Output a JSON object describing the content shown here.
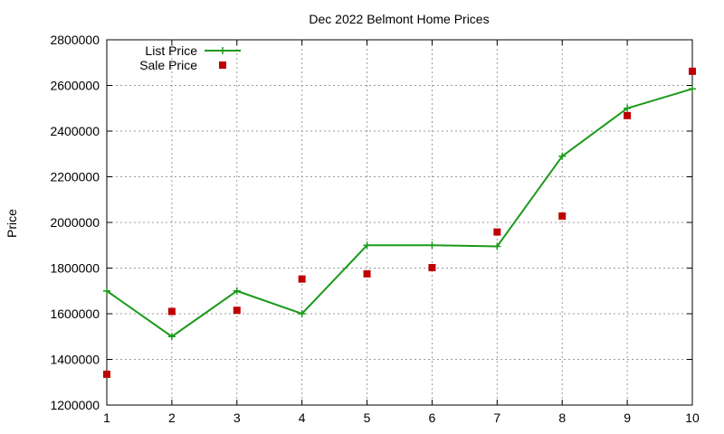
{
  "chart_data": {
    "type": "line",
    "title": "Dec 2022 Belmont Home Prices",
    "xlabel": "",
    "ylabel": "Price",
    "x": [
      1,
      2,
      3,
      4,
      5,
      6,
      7,
      8,
      9,
      10
    ],
    "xlim": [
      1,
      10
    ],
    "ylim": [
      1200000,
      2800000
    ],
    "xticks": [
      "1",
      "2",
      "3",
      "4",
      "5",
      "6",
      "7",
      "8",
      "9",
      "10"
    ],
    "yticks": [
      "1200000",
      "1400000",
      "1600000",
      "1800000",
      "2000000",
      "2200000",
      "2400000",
      "2600000",
      "2800000"
    ],
    "grid": true,
    "legend_position": "top-left",
    "series": [
      {
        "name": "List Price",
        "style": "line-with-plus-markers",
        "color": "#1a9a1a",
        "x": [
          1,
          2,
          3,
          4,
          5,
          6,
          7,
          8,
          9,
          10
        ],
        "values": [
          1700000,
          1500000,
          1700000,
          1600000,
          1900000,
          1900000,
          1895000,
          2290000,
          2500000,
          2585000
        ]
      },
      {
        "name": "Sale Price",
        "style": "square-markers",
        "color": "#c00000",
        "x": [
          1,
          2,
          3,
          4,
          5,
          6,
          7,
          8,
          9,
          10
        ],
        "values": [
          1335000,
          1610000,
          1615000,
          1752000,
          1775000,
          1802000,
          1958000,
          2028000,
          2468000,
          2662000
        ]
      }
    ]
  }
}
